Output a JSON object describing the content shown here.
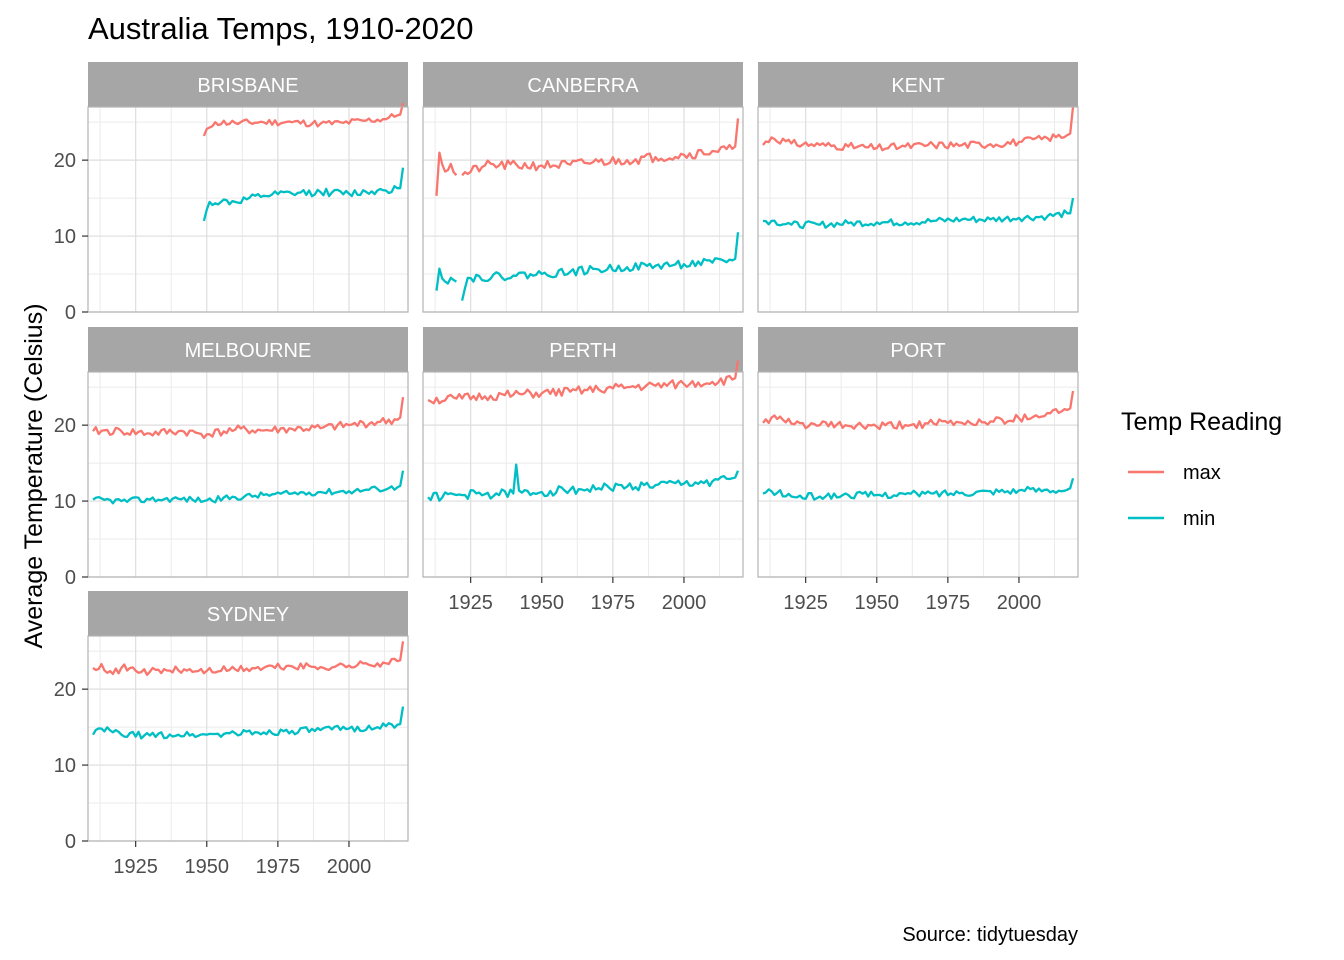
{
  "chart_data": {
    "type": "line",
    "title": "Australia Temps, 1910-2020",
    "ylabel": "Average Temperature (Celsius)",
    "xlabel": "",
    "caption": "Source: tidytuesday",
    "xlim": [
      1910,
      2019
    ],
    "ylim": [
      0,
      27
    ],
    "x_ticks": [
      1925,
      1950,
      1975,
      2000
    ],
    "y_ticks": [
      0,
      10,
      20
    ],
    "grid": true,
    "legend": {
      "title": "Temp Reading",
      "position": "right",
      "entries": [
        {
          "name": "max",
          "color": "#F8766D"
        },
        {
          "name": "min",
          "color": "#00BFC4"
        }
      ]
    },
    "panels": [
      {
        "city": "BRISBANE",
        "max": {
          "start": 1949,
          "end": 2019,
          "knots": [
            [
              1949,
              23.2
            ],
            [
              1951,
              24.3
            ],
            [
              1953,
              25.0
            ],
            [
              1960,
              24.9
            ],
            [
              1970,
              25.0
            ],
            [
              1980,
              25.0
            ],
            [
              1990,
              24.8
            ],
            [
              1998,
              24.9
            ],
            [
              2005,
              25.2
            ],
            [
              2012,
              25.4
            ],
            [
              2017,
              25.9
            ],
            [
              2018,
              26.0
            ],
            [
              2019,
              27.5
            ]
          ],
          "amp": 0.45,
          "seed": 11
        },
        "min": {
          "start": 1949,
          "end": 2019,
          "knots": [
            [
              1949,
              12.0
            ],
            [
              1951,
              14.5
            ],
            [
              1955,
              14.5
            ],
            [
              1960,
              14.5
            ],
            [
              1970,
              15.3
            ],
            [
              1980,
              15.6
            ],
            [
              1990,
              15.8
            ],
            [
              2000,
              15.6
            ],
            [
              2010,
              16.0
            ],
            [
              2017,
              16.3
            ],
            [
              2018,
              16.3
            ],
            [
              2019,
              19.0
            ]
          ],
          "amp": 0.5,
          "seed": 12
        }
      },
      {
        "city": "CANBERRA",
        "max": {
          "start": 1913,
          "end": 2019,
          "gap": [
            1920,
            1922
          ],
          "knots": [
            [
              1913,
              15.3
            ],
            [
              1914,
              21.0
            ],
            [
              1916,
              18.5
            ],
            [
              1918,
              19.5
            ],
            [
              1920,
              18.0
            ],
            [
              1922,
              18.0
            ],
            [
              1930,
              19.3
            ],
            [
              1950,
              19.3
            ],
            [
              1960,
              19.4
            ],
            [
              1970,
              19.8
            ],
            [
              1980,
              20.0
            ],
            [
              1990,
              20.4
            ],
            [
              2000,
              20.7
            ],
            [
              2010,
              21.2
            ],
            [
              2017,
              21.5
            ],
            [
              2018,
              21.8
            ],
            [
              2019,
              25.5
            ]
          ],
          "amp": 0.65,
          "seed": 21
        },
        "min": {
          "start": 1913,
          "end": 2019,
          "gap": [
            1920,
            1922
          ],
          "knots": [
            [
              1913,
              2.8
            ],
            [
              1914,
              5.7
            ],
            [
              1916,
              4.0
            ],
            [
              1918,
              4.5
            ],
            [
              1920,
              4.0
            ],
            [
              1922,
              1.5
            ],
            [
              1924,
              4.5
            ],
            [
              1940,
              4.8
            ],
            [
              1950,
              5.0
            ],
            [
              1960,
              5.3
            ],
            [
              1970,
              5.6
            ],
            [
              1980,
              5.9
            ],
            [
              1990,
              6.1
            ],
            [
              2000,
              6.3
            ],
            [
              2010,
              6.5
            ],
            [
              2017,
              6.8
            ],
            [
              2018,
              7.0
            ],
            [
              2019,
              10.5
            ]
          ],
          "amp": 0.55,
          "seed": 22
        }
      },
      {
        "city": "KENT",
        "max": {
          "start": 1910,
          "end": 2019,
          "knots": [
            [
              1910,
              22.0
            ],
            [
              1913,
              23.0
            ],
            [
              1920,
              22.2
            ],
            [
              1930,
              22.0
            ],
            [
              1940,
              21.8
            ],
            [
              1950,
              21.6
            ],
            [
              1960,
              21.8
            ],
            [
              1970,
              22.0
            ],
            [
              1980,
              22.0
            ],
            [
              1990,
              22.1
            ],
            [
              2000,
              22.4
            ],
            [
              2010,
              22.9
            ],
            [
              2017,
              23.3
            ],
            [
              2018,
              23.5
            ],
            [
              2019,
              27.0
            ]
          ],
          "amp": 0.5,
          "seed": 31
        },
        "min": {
          "start": 1910,
          "end": 2019,
          "knots": [
            [
              1910,
              12.0
            ],
            [
              1913,
              12.0
            ],
            [
              1920,
              11.5
            ],
            [
              1930,
              11.5
            ],
            [
              1940,
              11.7
            ],
            [
              1950,
              11.8
            ],
            [
              1960,
              11.8
            ],
            [
              1970,
              12.0
            ],
            [
              1980,
              12.2
            ],
            [
              1990,
              12.2
            ],
            [
              2000,
              12.4
            ],
            [
              2010,
              12.6
            ],
            [
              2017,
              13.0
            ],
            [
              2018,
              13.0
            ],
            [
              2019,
              15.0
            ]
          ],
          "amp": 0.45,
          "seed": 32
        }
      },
      {
        "city": "MELBOURNE",
        "max": {
          "start": 1910,
          "end": 2019,
          "knots": [
            [
              1910,
              19.2
            ],
            [
              1920,
              19.2
            ],
            [
              1930,
              18.9
            ],
            [
              1940,
              19.2
            ],
            [
              1950,
              18.8
            ],
            [
              1960,
              19.4
            ],
            [
              1970,
              19.3
            ],
            [
              1980,
              19.5
            ],
            [
              1990,
              19.6
            ],
            [
              2000,
              20.0
            ],
            [
              2010,
              20.4
            ],
            [
              2017,
              20.7
            ],
            [
              2018,
              21.0
            ],
            [
              2019,
              23.7
            ]
          ],
          "amp": 0.55,
          "seed": 41
        },
        "min": {
          "start": 1910,
          "end": 2019,
          "knots": [
            [
              1910,
              10.2
            ],
            [
              1920,
              10.0
            ],
            [
              1930,
              10.2
            ],
            [
              1940,
              10.3
            ],
            [
              1950,
              10.1
            ],
            [
              1960,
              10.5
            ],
            [
              1970,
              10.8
            ],
            [
              1980,
              11.0
            ],
            [
              1990,
              11.2
            ],
            [
              2000,
              11.3
            ],
            [
              2010,
              11.6
            ],
            [
              2017,
              11.8
            ],
            [
              2018,
              12.0
            ],
            [
              2019,
              14.0
            ]
          ],
          "amp": 0.4,
          "seed": 42
        }
      },
      {
        "city": "PERTH",
        "max": {
          "start": 1910,
          "end": 2019,
          "knots": [
            [
              1910,
              23.3
            ],
            [
              1920,
              23.5
            ],
            [
              1930,
              23.8
            ],
            [
              1940,
              24.0
            ],
            [
              1950,
              24.2
            ],
            [
              1960,
              24.4
            ],
            [
              1970,
              24.7
            ],
            [
              1980,
              25.0
            ],
            [
              1990,
              25.2
            ],
            [
              2000,
              25.4
            ],
            [
              2010,
              25.7
            ],
            [
              2017,
              26.0
            ],
            [
              2018,
              26.2
            ],
            [
              2019,
              28.5
            ]
          ],
          "amp": 0.6,
          "seed": 51
        },
        "min": {
          "start": 1910,
          "end": 2019,
          "spikes": [
            [
              1941,
              14.8
            ]
          ],
          "knots": [
            [
              1910,
              10.5
            ],
            [
              1920,
              10.8
            ],
            [
              1930,
              10.9
            ],
            [
              1940,
              11.0
            ],
            [
              1950,
              11.2
            ],
            [
              1960,
              11.5
            ],
            [
              1970,
              11.7
            ],
            [
              1980,
              11.9
            ],
            [
              1990,
              12.1
            ],
            [
              2000,
              12.3
            ],
            [
              2010,
              12.6
            ],
            [
              2017,
              13.0
            ],
            [
              2018,
              13.1
            ],
            [
              2019,
              14.0
            ]
          ],
          "amp": 0.6,
          "seed": 52
        }
      },
      {
        "city": "PORT",
        "max": {
          "start": 1910,
          "end": 2019,
          "knots": [
            [
              1910,
              20.3
            ],
            [
              1913,
              21.0
            ],
            [
              1920,
              20.2
            ],
            [
              1930,
              20.0
            ],
            [
              1940,
              19.9
            ],
            [
              1950,
              19.8
            ],
            [
              1960,
              20.0
            ],
            [
              1970,
              20.2
            ],
            [
              1980,
              20.3
            ],
            [
              1990,
              20.5
            ],
            [
              2000,
              20.9
            ],
            [
              2010,
              21.6
            ],
            [
              2017,
              22.0
            ],
            [
              2018,
              22.2
            ],
            [
              2019,
              24.5
            ]
          ],
          "amp": 0.55,
          "seed": 61
        },
        "min": {
          "start": 1910,
          "end": 2019,
          "knots": [
            [
              1910,
              11.0
            ],
            [
              1913,
              11.3
            ],
            [
              1920,
              10.6
            ],
            [
              1930,
              10.6
            ],
            [
              1940,
              10.8
            ],
            [
              1950,
              10.8
            ],
            [
              1960,
              10.9
            ],
            [
              1970,
              11.0
            ],
            [
              1980,
              11.1
            ],
            [
              1990,
              11.3
            ],
            [
              2000,
              11.4
            ],
            [
              2010,
              11.5
            ],
            [
              2017,
              11.5
            ],
            [
              2018,
              11.7
            ],
            [
              2019,
              13.0
            ]
          ],
          "amp": 0.45,
          "seed": 62
        }
      },
      {
        "city": "SYDNEY",
        "max": {
          "start": 1910,
          "end": 2019,
          "knots": [
            [
              1910,
              22.8
            ],
            [
              1913,
              23.3
            ],
            [
              1917,
              22.0
            ],
            [
              1920,
              22.8
            ],
            [
              1930,
              22.3
            ],
            [
              1940,
              22.5
            ],
            [
              1950,
              22.4
            ],
            [
              1960,
              22.6
            ],
            [
              1970,
              22.8
            ],
            [
              1980,
              23.0
            ],
            [
              1990,
              22.9
            ],
            [
              2000,
              23.1
            ],
            [
              2010,
              23.4
            ],
            [
              2017,
              23.7
            ],
            [
              2018,
              23.8
            ],
            [
              2019,
              26.3
            ]
          ],
          "amp": 0.5,
          "seed": 71
        },
        "min": {
          "start": 1910,
          "end": 2019,
          "knots": [
            [
              1910,
              14.0
            ],
            [
              1913,
              14.8
            ],
            [
              1920,
              14.0
            ],
            [
              1930,
              13.9
            ],
            [
              1940,
              14.0
            ],
            [
              1950,
              14.0
            ],
            [
              1960,
              14.2
            ],
            [
              1970,
              14.3
            ],
            [
              1980,
              14.5
            ],
            [
              1990,
              14.6
            ],
            [
              2000,
              14.8
            ],
            [
              2010,
              15.0
            ],
            [
              2017,
              15.3
            ],
            [
              2018,
              15.4
            ],
            [
              2019,
              17.7
            ]
          ],
          "amp": 0.45,
          "seed": 72
        }
      }
    ]
  }
}
